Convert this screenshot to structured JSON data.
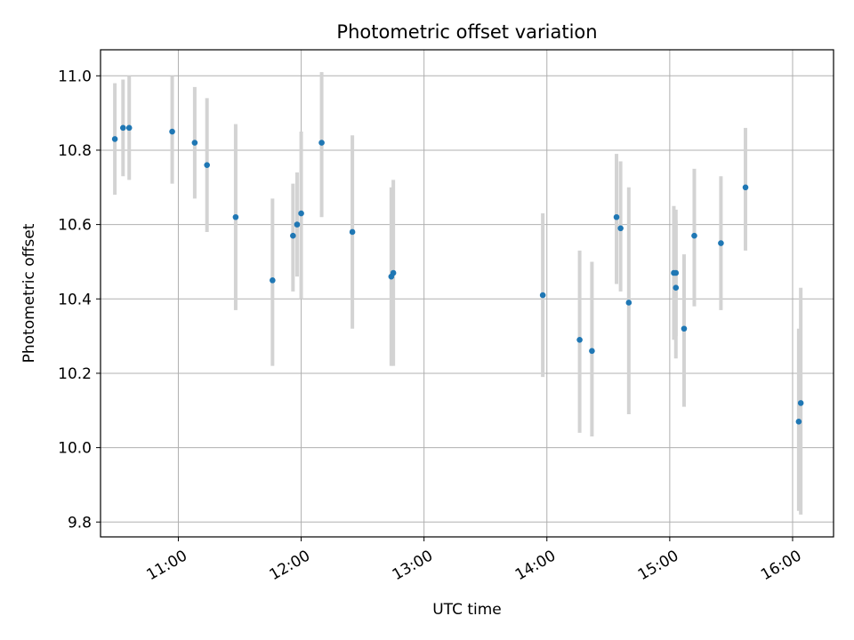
{
  "chart_data": {
    "type": "scatter",
    "title": "Photometric offset variation",
    "xlabel": "UTC time",
    "ylabel": "Photometric offset",
    "xlim": [
      "10:22",
      "16:20"
    ],
    "ylim": [
      9.76,
      11.07
    ],
    "x_tick_labels": [
      "11:00",
      "12:00",
      "13:00",
      "14:00",
      "15:00",
      "16:00"
    ],
    "y_tick_labels": [
      "9.8",
      "10.0",
      "10.2",
      "10.4",
      "10.6",
      "10.8",
      "11.0"
    ],
    "grid": true,
    "errorbar_color": "#d3d3d3",
    "point_color": "#1f77b4",
    "series": [
      {
        "points": [
          {
            "x": "10:29",
            "y": 10.83,
            "ylo": 10.68,
            "yhi": 10.98
          },
          {
            "x": "10:33",
            "y": 10.86,
            "ylo": 10.73,
            "yhi": 10.99
          },
          {
            "x": "10:36",
            "y": 10.86,
            "ylo": 10.72,
            "yhi": 11.0
          },
          {
            "x": "10:57",
            "y": 10.85,
            "ylo": 10.71,
            "yhi": 11.0
          },
          {
            "x": "11:08",
            "y": 10.82,
            "ylo": 10.67,
            "yhi": 10.97
          },
          {
            "x": "11:14",
            "y": 10.76,
            "ylo": 10.58,
            "yhi": 10.94
          },
          {
            "x": "11:28",
            "y": 10.62,
            "ylo": 10.37,
            "yhi": 10.87
          },
          {
            "x": "11:46",
            "y": 10.45,
            "ylo": 10.22,
            "yhi": 10.67
          },
          {
            "x": "11:56",
            "y": 10.57,
            "ylo": 10.42,
            "yhi": 10.71
          },
          {
            "x": "11:58",
            "y": 10.6,
            "ylo": 10.46,
            "yhi": 10.74
          },
          {
            "x": "12:00",
            "y": 10.63,
            "ylo": 10.4,
            "yhi": 10.85
          },
          {
            "x": "12:10",
            "y": 10.82,
            "ylo": 10.62,
            "yhi": 11.01
          },
          {
            "x": "12:25",
            "y": 10.58,
            "ylo": 10.32,
            "yhi": 10.84
          },
          {
            "x": "12:44",
            "y": 10.46,
            "ylo": 10.22,
            "yhi": 10.7
          },
          {
            "x": "12:45",
            "y": 10.47,
            "ylo": 10.22,
            "yhi": 10.72
          },
          {
            "x": "13:58",
            "y": 10.41,
            "ylo": 10.19,
            "yhi": 10.63
          },
          {
            "x": "14:16",
            "y": 10.29,
            "ylo": 10.04,
            "yhi": 10.53
          },
          {
            "x": "14:22",
            "y": 10.26,
            "ylo": 10.03,
            "yhi": 10.5
          },
          {
            "x": "14:34",
            "y": 10.62,
            "ylo": 10.44,
            "yhi": 10.79
          },
          {
            "x": "14:36",
            "y": 10.59,
            "ylo": 10.42,
            "yhi": 10.77
          },
          {
            "x": "14:40",
            "y": 10.39,
            "ylo": 10.09,
            "yhi": 10.7
          },
          {
            "x": "15:02",
            "y": 10.47,
            "ylo": 10.29,
            "yhi": 10.65
          },
          {
            "x": "15:03",
            "y": 10.47,
            "ylo": 10.3,
            "yhi": 10.64
          },
          {
            "x": "15:03",
            "y": 10.43,
            "ylo": 10.24,
            "yhi": 10.61
          },
          {
            "x": "15:07",
            "y": 10.32,
            "ylo": 10.11,
            "yhi": 10.52
          },
          {
            "x": "15:12",
            "y": 10.57,
            "ylo": 10.38,
            "yhi": 10.75
          },
          {
            "x": "15:25",
            "y": 10.55,
            "ylo": 10.37,
            "yhi": 10.73
          },
          {
            "x": "15:37",
            "y": 10.7,
            "ylo": 10.53,
            "yhi": 10.86
          },
          {
            "x": "16:03",
            "y": 10.07,
            "ylo": 9.83,
            "yhi": 10.32
          },
          {
            "x": "16:04",
            "y": 10.12,
            "ylo": 9.82,
            "yhi": 10.43
          }
        ]
      }
    ]
  }
}
